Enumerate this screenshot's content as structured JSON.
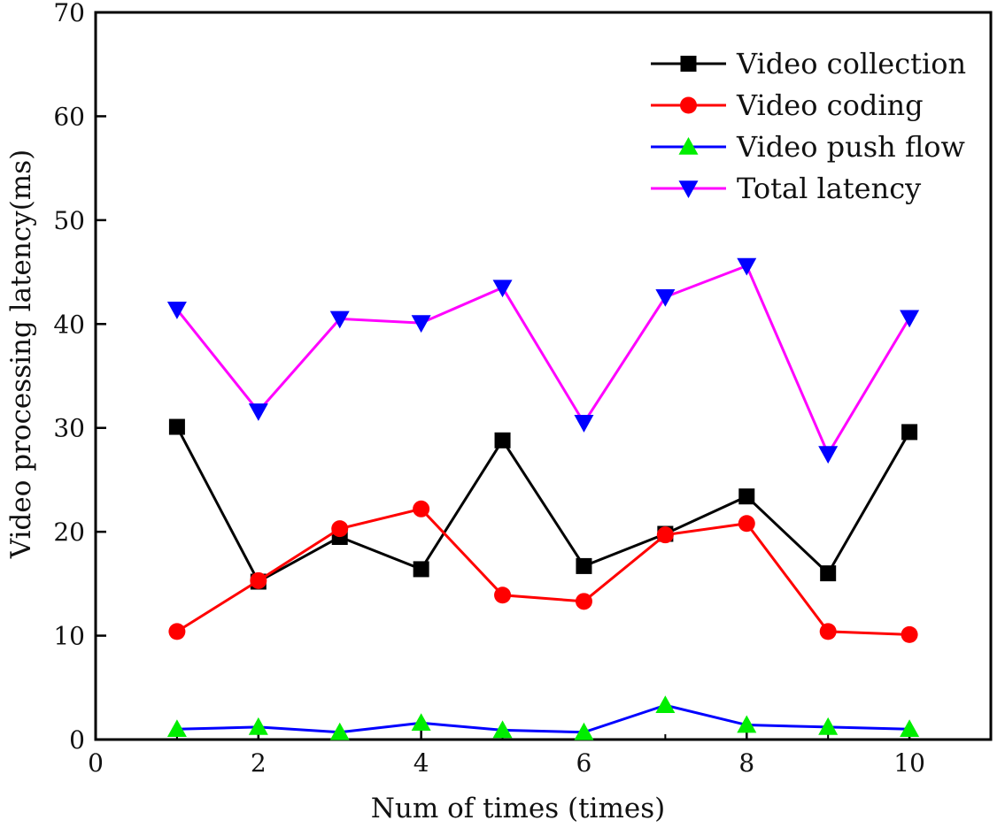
{
  "chart_data": {
    "type": "line",
    "title": "",
    "xlabel": "Num of times (times)",
    "ylabel": "Video processing latency(ms)",
    "xlim": [
      0,
      11
    ],
    "ylim": [
      0,
      70
    ],
    "xticks": [
      0,
      2,
      4,
      6,
      8,
      10
    ],
    "yticks": [
      0,
      10,
      20,
      30,
      40,
      50,
      60,
      70
    ],
    "grid": false,
    "legend_position": "top-right",
    "x": [
      1,
      2,
      3,
      4,
      5,
      6,
      7,
      8,
      9,
      10
    ],
    "series": [
      {
        "name": "Video collection",
        "color": "#000000",
        "marker": "square",
        "values": [
          30.1,
          15.2,
          19.5,
          16.4,
          28.8,
          16.7,
          19.8,
          23.4,
          16.0,
          29.6
        ]
      },
      {
        "name": "Video coding",
        "color": "#ff0000",
        "marker": "circle",
        "values": [
          10.4,
          15.3,
          20.3,
          22.2,
          13.9,
          13.3,
          19.7,
          20.8,
          10.4,
          10.1
        ]
      },
      {
        "name": "Video push flow",
        "color": "#0000ff",
        "marker_color": "#00ee00",
        "marker": "triangle-up",
        "values": [
          1.0,
          1.2,
          0.7,
          1.6,
          0.9,
          0.7,
          3.3,
          1.4,
          1.2,
          1.0
        ]
      },
      {
        "name": "Total latency",
        "color": "#ff00ff",
        "marker_color": "#0000ff",
        "marker": "triangle-down",
        "values": [
          41.4,
          31.6,
          40.5,
          40.1,
          43.5,
          30.5,
          42.6,
          45.6,
          27.5,
          40.6
        ]
      }
    ]
  }
}
